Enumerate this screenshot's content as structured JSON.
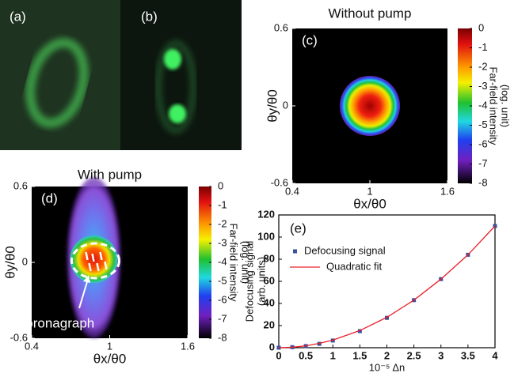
{
  "photos": [
    {
      "label": "(a)"
    },
    {
      "label": "(b)"
    }
  ],
  "chart_data": [
    {
      "type": "heatmap",
      "panel_label": "(c)",
      "title": "Without pump",
      "xlabel": "θx/θ0",
      "ylabel": "θy/θ0",
      "xlim": [
        0.4,
        1.6
      ],
      "xticks": [
        0.4,
        1,
        1.6
      ],
      "ylim": [
        -0.6,
        0.6
      ],
      "yticks": [
        -0.6,
        0,
        0.6
      ],
      "colorbar": {
        "label": [
          "Far-field intensity",
          "(log. unit)"
        ],
        "lim": [
          -8,
          0
        ],
        "ticks": [
          0,
          -1,
          -2,
          -3,
          -4,
          -5,
          -6,
          -7,
          -8
        ]
      }
    },
    {
      "type": "heatmap",
      "panel_label": "(d)",
      "title": "With pump",
      "annotation": "Coronagraph",
      "xlabel": "θx/θ0",
      "ylabel": "θy/θ0",
      "xlim": [
        0.4,
        1.6
      ],
      "xticks": [
        0.4,
        1,
        1.6
      ],
      "ylim": [
        -0.6,
        0.6
      ],
      "yticks": [
        -0.6,
        0,
        0.6
      ],
      "colorbar": {
        "label": [
          "Far-field intensity",
          "(log. unit)"
        ],
        "lim": [
          -8,
          0
        ],
        "ticks": [
          0,
          -1,
          -2,
          -3,
          -4,
          -5,
          -6,
          -7,
          -8
        ]
      }
    },
    {
      "type": "scatter",
      "panel_label": "(e)",
      "xlabel": "10⁻⁵ Δn",
      "ylabel": [
        "Defocusing signal",
        "(arb. units)"
      ],
      "x": [
        0,
        0.25,
        0.5,
        0.75,
        1,
        1.5,
        2,
        2.5,
        3,
        3.5,
        4
      ],
      "series": [
        {
          "name": "Defocusing signal",
          "color": "#3a4fa0",
          "style": "marker",
          "values": [
            0,
            0.5,
            1.5,
            3.5,
            6.5,
            15,
            27,
            43,
            62,
            84,
            110
          ]
        },
        {
          "name": "Quadratic fit",
          "color": "#e8202a",
          "style": "line",
          "values": [
            0,
            0.4,
            1.7,
            3.9,
            6.9,
            15.5,
            27.5,
            43,
            62,
            84,
            110
          ]
        }
      ],
      "xlim": [
        0,
        4
      ],
      "xticks": [
        0,
        0.5,
        1,
        1.5,
        2,
        2.5,
        3,
        3.5,
        4
      ],
      "ylim": [
        0,
        120
      ],
      "yticks": [
        0,
        20,
        40,
        60,
        80,
        100,
        120
      ],
      "legend": "upper left"
    }
  ]
}
